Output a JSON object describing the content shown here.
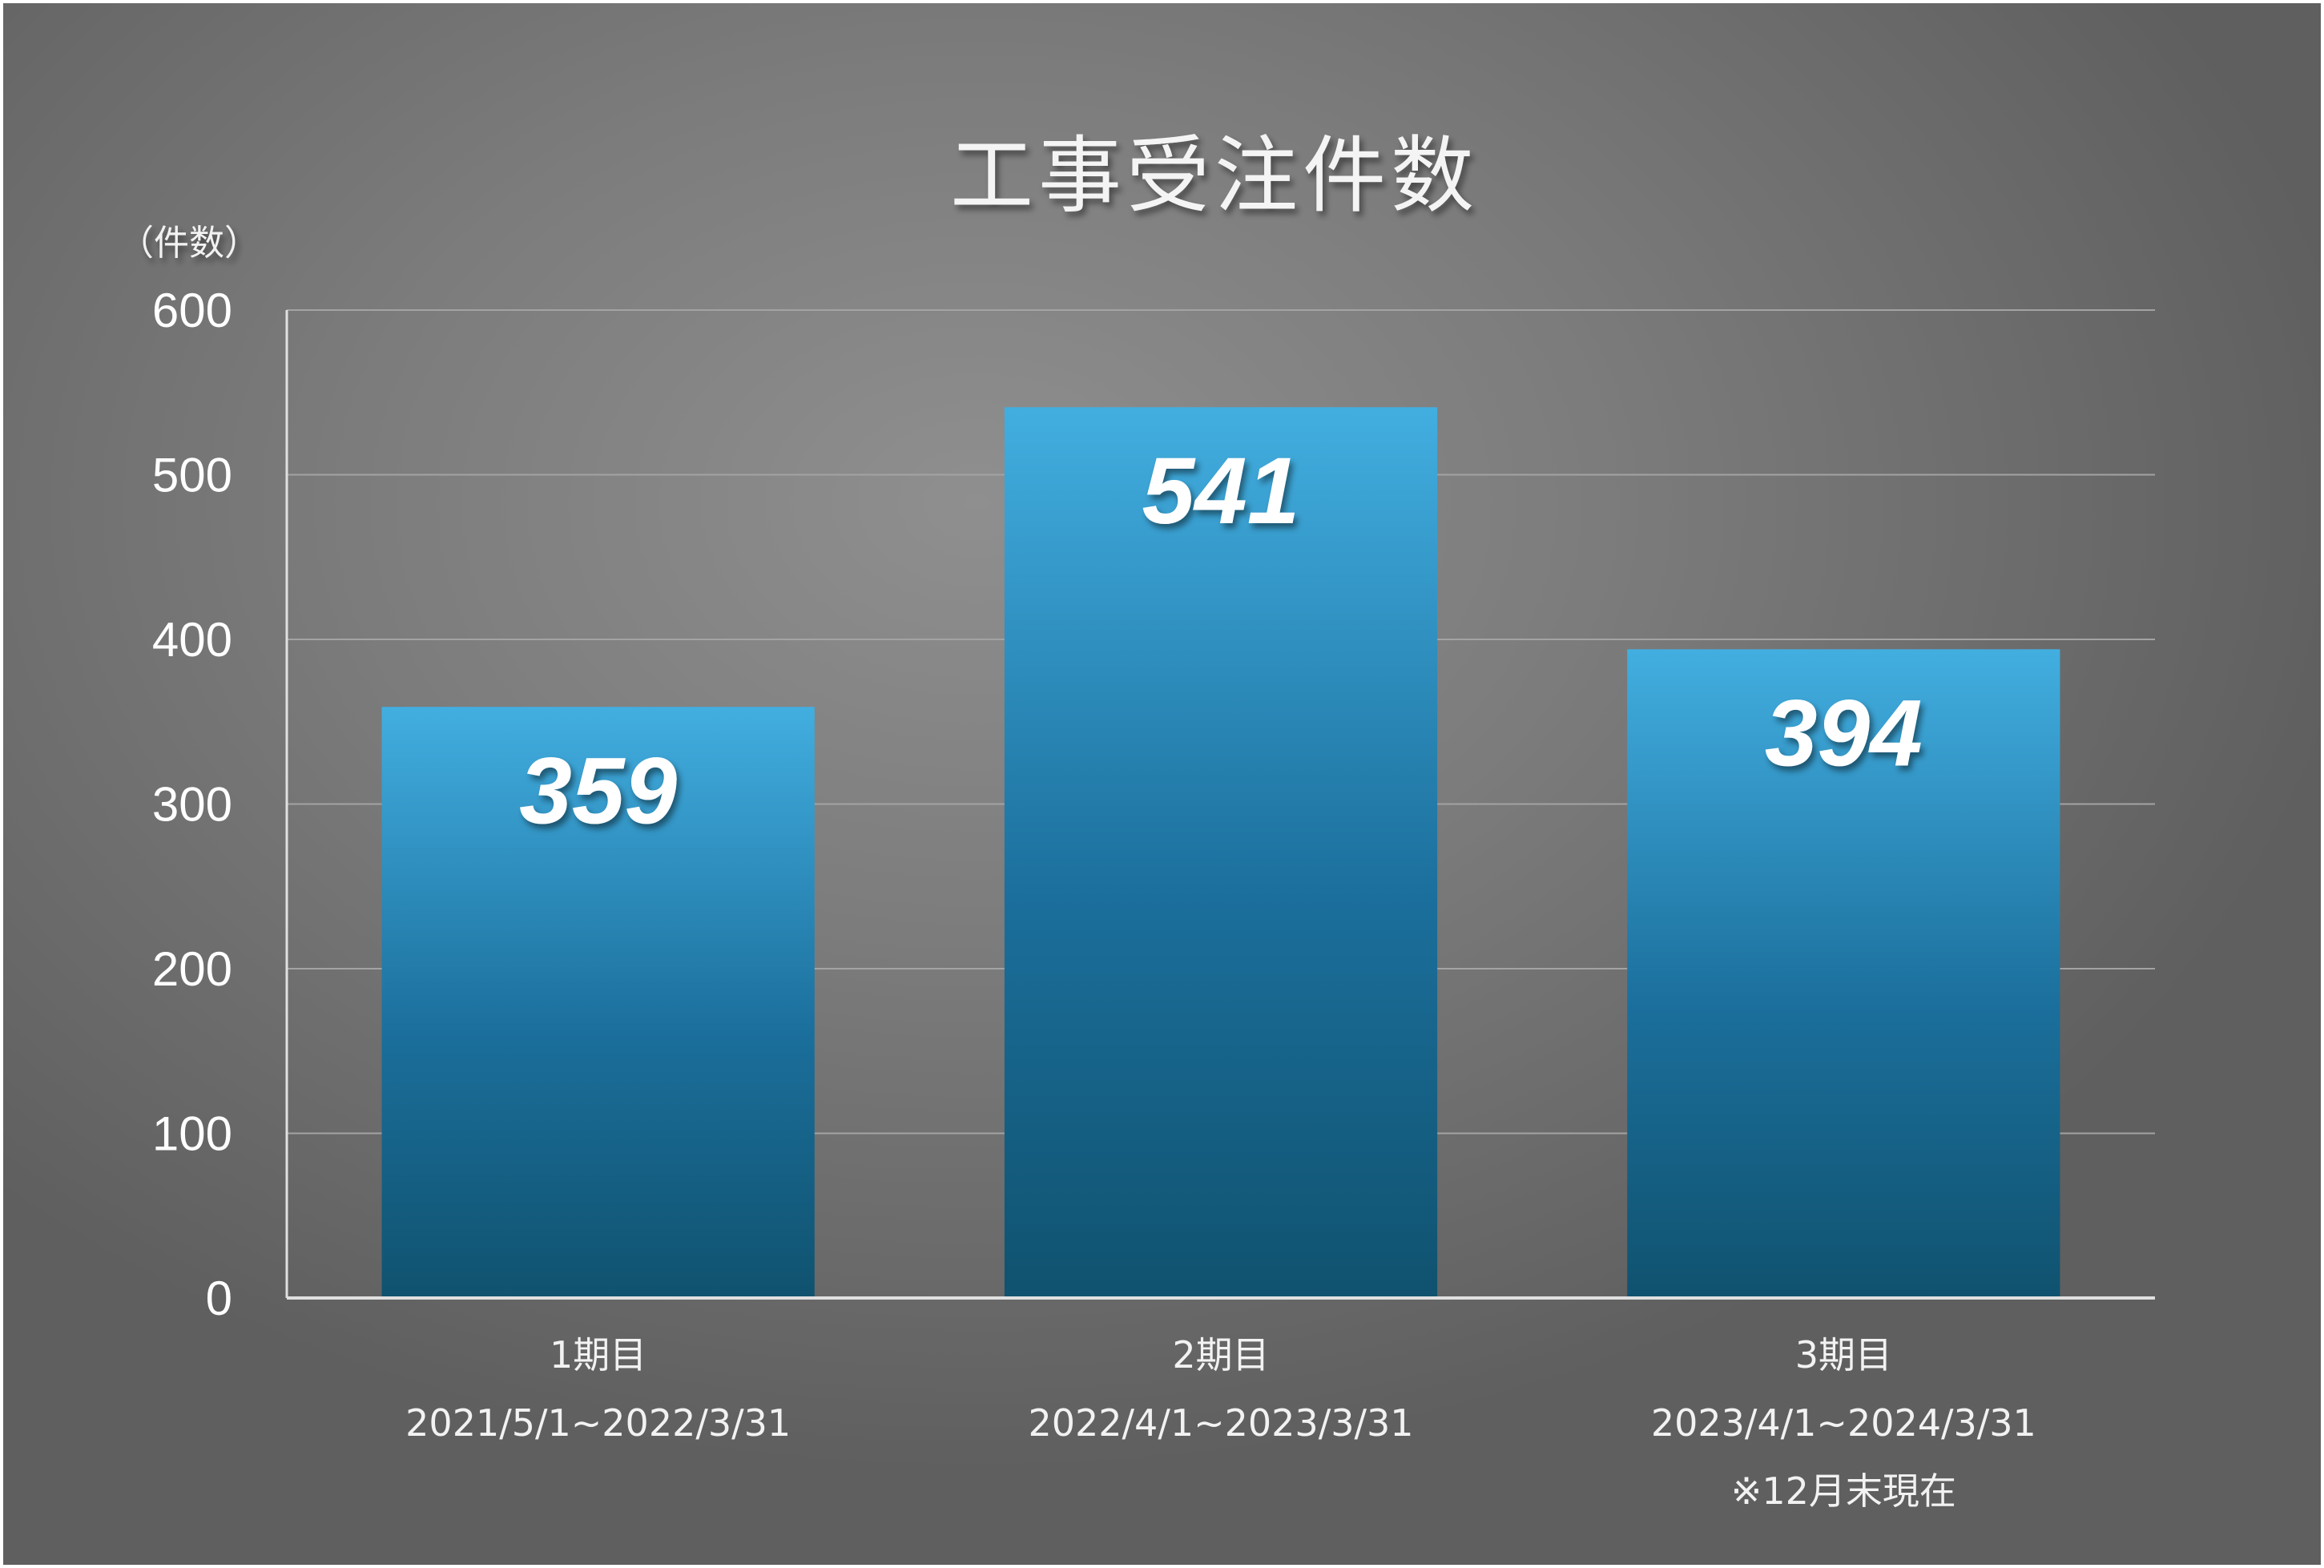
{
  "chart_data": {
    "type": "bar",
    "title": "工事受注件数",
    "ylabel": "（件数）",
    "xlabel": "",
    "ylim": [
      0,
      600
    ],
    "yticks": [
      0,
      100,
      200,
      300,
      400,
      500,
      600
    ],
    "grid": true,
    "legend": "none",
    "categories": [
      {
        "name": "1期目",
        "period": "2021/5/1~2022/3/31",
        "note": ""
      },
      {
        "name": "2期目",
        "period": "2022/4/1~2023/3/31",
        "note": ""
      },
      {
        "name": "3期目",
        "period": "2023/4/1~2024/3/31",
        "note": "※12月末現在"
      }
    ],
    "values": [
      359,
      541,
      394
    ],
    "colors": {
      "bar_top": "#42aee0",
      "bar_bottom": "#10526f",
      "gridline": "#a3a3a3",
      "axis": "#e0e0e0"
    }
  }
}
